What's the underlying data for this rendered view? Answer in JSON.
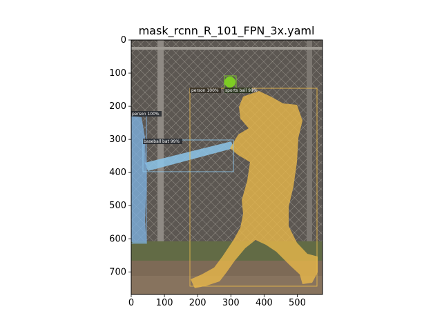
{
  "figure": {
    "title": "mask_rcnn_R_101_FPN_3x.yaml",
    "x_axis": {
      "range": [
        0,
        576
      ],
      "ticks": [
        0,
        100,
        200,
        300,
        400,
        500
      ],
      "labels": [
        "0",
        "100",
        "200",
        "300",
        "400",
        "500"
      ]
    },
    "y_axis": {
      "range": [
        0,
        768
      ],
      "ticks": [
        0,
        100,
        200,
        300,
        400,
        500,
        600,
        700
      ],
      "labels": [
        "0",
        "100",
        "200",
        "300",
        "400",
        "500",
        "600",
        "700"
      ],
      "inverted": true
    }
  },
  "detections": [
    {
      "label": "person 100%",
      "color": "#e8b84a"
    },
    {
      "label": "person 100%",
      "color": "#7fb4e6"
    },
    {
      "label": "baseball bat 99%",
      "color": "#8cc6ea"
    },
    {
      "label": "sports ball 99%",
      "color": "#7ed321"
    }
  ],
  "colors": {
    "dirt": "#7d6a56",
    "grass": "#5f6a43",
    "fence_bg": "#5a5550",
    "fence_wire": "#b7b2a8"
  }
}
